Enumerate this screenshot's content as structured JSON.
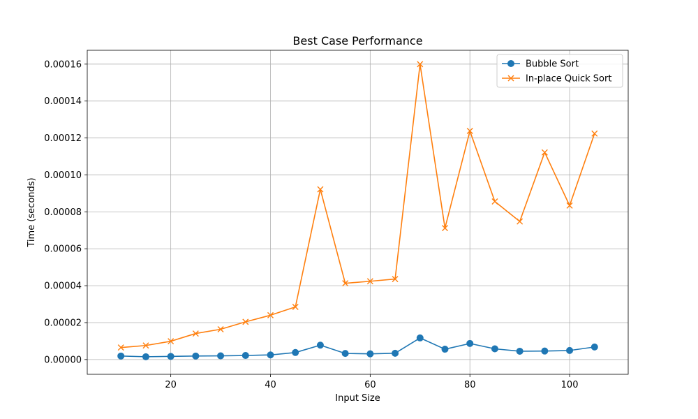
{
  "chart_data": {
    "type": "line",
    "title": "Best Case Performance",
    "xlabel": "Input Size",
    "ylabel": "Time (seconds)",
    "xlim": [
      3.25,
      111.75
    ],
    "ylim": [
      -8e-06,
      0.0001675
    ],
    "xticks": [
      20,
      40,
      60,
      80,
      100
    ],
    "xtick_labels": [
      "20",
      "40",
      "60",
      "80",
      "100"
    ],
    "yticks": [
      0,
      2e-05,
      4e-05,
      6e-05,
      8e-05,
      0.0001,
      0.00012,
      0.00014,
      0.00016
    ],
    "ytick_labels": [
      "0.00000",
      "0.00002",
      "0.00004",
      "0.00006",
      "0.00008",
      "0.00010",
      "0.00012",
      "0.00014",
      "0.00016"
    ],
    "grid": true,
    "legend_position": "top-right",
    "x": [
      10,
      15,
      20,
      25,
      30,
      35,
      40,
      45,
      50,
      55,
      60,
      65,
      70,
      75,
      80,
      85,
      90,
      95,
      100,
      105
    ],
    "series": [
      {
        "name": "Bubble Sort",
        "color": "#1f77b4",
        "marker": "circle",
        "values": [
          1.9e-06,
          1.5e-06,
          1.7e-06,
          1.9e-06,
          2e-06,
          2.2e-06,
          2.5e-06,
          3.8e-06,
          7.8e-06,
          3.3e-06,
          3.1e-06,
          3.4e-06,
          1.17e-05,
          5.6e-06,
          8.7e-06,
          5.8e-06,
          4.5e-06,
          4.6e-06,
          4.9e-06,
          6.8e-06
        ]
      },
      {
        "name": "In-place Quick Sort",
        "color": "#ff7f0e",
        "marker": "x",
        "values": [
          6.5e-06,
          7.6e-06,
          9.9e-06,
          1.41e-05,
          1.64e-05,
          2.04e-05,
          2.4e-05,
          2.85e-05,
          9.22e-05,
          4.13e-05,
          4.24e-05,
          4.36e-05,
          0.00016,
          7.12e-05,
          0.0001238,
          8.56e-05,
          7.48e-05,
          0.0001122,
          8.34e-05,
          0.0001224
        ]
      }
    ]
  }
}
